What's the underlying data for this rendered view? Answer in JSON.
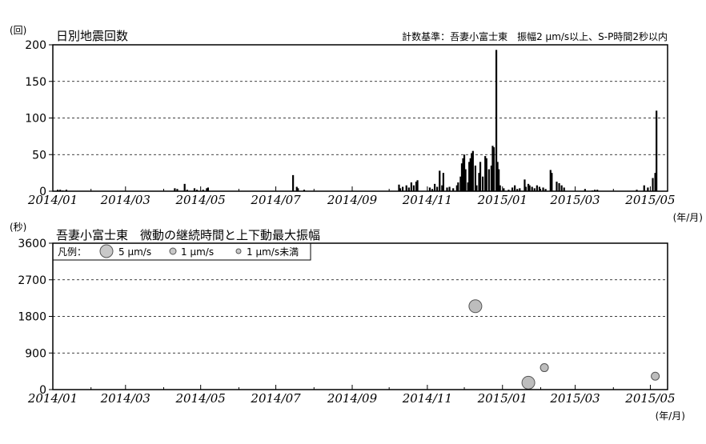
{
  "chart_data": [
    {
      "type": "bar",
      "title": "日別地震回数",
      "unit_label": "(回)",
      "note": "計数基準：吾妻小富士東　振幅2 μm/s以上、S-P時間2秒以内",
      "xunit_label": "(年/月)",
      "xlim": [
        "2014-01-01",
        "2015-05-15"
      ],
      "ylim": [
        0,
        200
      ],
      "yticks": [
        "0",
        "50",
        "100",
        "150",
        "200"
      ],
      "xticks": [
        {
          "date": "2014-01-01",
          "label": "2014/01"
        },
        {
          "date": "2014-03-01",
          "label": "2014/03"
        },
        {
          "date": "2014-05-01",
          "label": "2014/05"
        },
        {
          "date": "2014-07-01",
          "label": "2014/07"
        },
        {
          "date": "2014-09-01",
          "label": "2014/09"
        },
        {
          "date": "2014-11-01",
          "label": "2014/11"
        },
        {
          "date": "2015-01-01",
          "label": "2015/01"
        },
        {
          "date": "2015-03-01",
          "label": "2015/03"
        },
        {
          "date": "2015-05-01",
          "label": "2015/05"
        }
      ],
      "grid": "horizontal dashed",
      "points": [
        [
          "2014-01-05",
          2
        ],
        [
          "2014-01-07",
          2
        ],
        [
          "2014-01-09",
          1
        ],
        [
          "2014-01-12",
          2
        ],
        [
          "2014-04-10",
          4
        ],
        [
          "2014-04-12",
          3
        ],
        [
          "2014-04-18",
          10
        ],
        [
          "2014-04-20",
          2
        ],
        [
          "2014-04-26",
          4
        ],
        [
          "2014-04-28",
          2
        ],
        [
          "2014-05-03",
          2
        ],
        [
          "2014-05-06",
          4
        ],
        [
          "2014-05-07",
          5
        ],
        [
          "2014-07-15",
          22
        ],
        [
          "2014-07-18",
          6
        ],
        [
          "2014-07-19",
          4
        ],
        [
          "2014-07-24",
          2
        ],
        [
          "2014-10-09",
          9
        ],
        [
          "2014-10-10",
          4
        ],
        [
          "2014-10-12",
          6
        ],
        [
          "2014-10-15",
          8
        ],
        [
          "2014-10-17",
          5
        ],
        [
          "2014-10-19",
          12
        ],
        [
          "2014-10-21",
          8
        ],
        [
          "2014-10-23",
          13
        ],
        [
          "2014-10-24",
          15
        ],
        [
          "2014-11-03",
          5
        ],
        [
          "2014-11-05",
          3
        ],
        [
          "2014-11-07",
          10
        ],
        [
          "2014-11-09",
          6
        ],
        [
          "2014-11-11",
          28
        ],
        [
          "2014-11-13",
          8
        ],
        [
          "2014-11-14",
          25
        ],
        [
          "2014-11-17",
          5
        ],
        [
          "2014-11-19",
          6
        ],
        [
          "2014-11-22",
          4
        ],
        [
          "2014-11-25",
          8
        ],
        [
          "2014-11-26",
          12
        ],
        [
          "2014-11-28",
          20
        ],
        [
          "2014-11-29",
          38
        ],
        [
          "2014-11-30",
          45
        ],
        [
          "2014-12-01",
          50
        ],
        [
          "2014-12-02",
          30
        ],
        [
          "2014-12-04",
          12
        ],
        [
          "2014-12-05",
          40
        ],
        [
          "2014-12-06",
          45
        ],
        [
          "2014-12-07",
          52
        ],
        [
          "2014-12-08",
          55
        ],
        [
          "2014-12-10",
          35
        ],
        [
          "2014-12-11",
          8
        ],
        [
          "2014-12-13",
          25
        ],
        [
          "2014-12-14",
          40
        ],
        [
          "2014-12-16",
          20
        ],
        [
          "2014-12-18",
          48
        ],
        [
          "2014-12-19",
          45
        ],
        [
          "2014-12-21",
          30
        ],
        [
          "2014-12-23",
          35
        ],
        [
          "2014-12-24",
          62
        ],
        [
          "2014-12-25",
          60
        ],
        [
          "2014-12-27",
          193
        ],
        [
          "2014-12-28",
          40
        ],
        [
          "2014-12-29",
          30
        ],
        [
          "2014-12-30",
          8
        ],
        [
          "2015-01-02",
          4
        ],
        [
          "2015-01-06",
          2
        ],
        [
          "2015-01-09",
          5
        ],
        [
          "2015-01-11",
          8
        ],
        [
          "2015-01-13",
          3
        ],
        [
          "2015-01-15",
          4
        ],
        [
          "2015-01-19",
          16
        ],
        [
          "2015-01-20",
          6
        ],
        [
          "2015-01-22",
          10
        ],
        [
          "2015-01-23",
          8
        ],
        [
          "2015-01-25",
          6
        ],
        [
          "2015-01-27",
          4
        ],
        [
          "2015-01-29",
          8
        ],
        [
          "2015-01-31",
          6
        ],
        [
          "2015-02-03",
          5
        ],
        [
          "2015-02-05",
          3
        ],
        [
          "2015-02-09",
          29
        ],
        [
          "2015-02-10",
          25
        ],
        [
          "2015-02-14",
          13
        ],
        [
          "2015-02-16",
          11
        ],
        [
          "2015-02-18",
          8
        ],
        [
          "2015-02-20",
          5
        ],
        [
          "2015-03-09",
          3
        ],
        [
          "2015-03-15",
          1
        ],
        [
          "2015-03-17",
          2
        ],
        [
          "2015-03-19",
          2
        ],
        [
          "2015-04-20",
          2
        ],
        [
          "2015-04-26",
          8
        ],
        [
          "2015-04-29",
          5
        ],
        [
          "2015-05-03",
          18
        ],
        [
          "2015-05-05",
          25
        ],
        [
          "2015-05-06",
          110
        ]
      ]
    },
    {
      "type": "scatter",
      "title": "吾妻小富士東　微動の継続時間と上下動最大振幅",
      "unit_label": "(秒)",
      "xunit_label": "(年/月)",
      "xlim": [
        "2014-01-01",
        "2015-05-15"
      ],
      "ylim": [
        0,
        3600
      ],
      "yticks": [
        "0",
        "900",
        "1800",
        "2700",
        "3600"
      ],
      "grid": "horizontal dashed",
      "legend": {
        "position": "top-left",
        "prefix": "凡例：",
        "items": [
          {
            "label": "5 μm/s",
            "size": "large"
          },
          {
            "label": "1 μm/s",
            "size": "medium"
          },
          {
            "label": "1 μm/s未満",
            "size": "small"
          }
        ]
      },
      "points": [
        {
          "date": "2014-12-10",
          "value": 2050,
          "size": "large"
        },
        {
          "date": "2015-01-22",
          "value": 170,
          "size": "large"
        },
        {
          "date": "2015-02-04",
          "value": 540,
          "size": "medium"
        },
        {
          "date": "2015-05-05",
          "value": 330,
          "size": "medium"
        }
      ]
    }
  ]
}
